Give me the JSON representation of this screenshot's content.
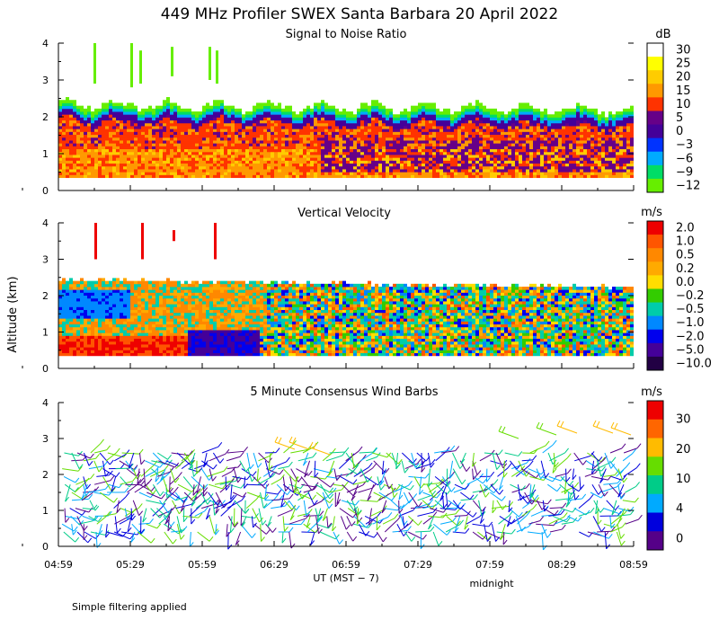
{
  "title": "449 MHz Profiler SWEX Santa Barbara 20 April 2022",
  "ylabel": "Altitude (km)",
  "xlabel": "UT  (MST − 7)",
  "x_ticks": [
    "04:59",
    "05:29",
    "05:59",
    "06:29",
    "06:59",
    "07:29",
    "07:59",
    "08:29",
    "08:59"
  ],
  "midnight_label": "midnight",
  "footnote": "Simple filtering applied",
  "chart_data": [
    {
      "type": "heatmap",
      "title": "Signal to Noise Ratio",
      "ylim": [
        0,
        4
      ],
      "y_ticks": [
        "0",
        "1",
        "2",
        "3",
        "4"
      ],
      "colorbar": {
        "unit": "dB",
        "labels": [
          "30",
          "25",
          "20",
          "15",
          "10",
          "5",
          "0",
          "−3",
          "−6",
          "−9",
          "−12"
        ],
        "colors": [
          "#ffffff",
          "#ffff00",
          "#ffcc00",
          "#ff9900",
          "#ff3300",
          "#660088",
          "#440099",
          "#0033ff",
          "#00aaff",
          "#00dd66",
          "#66ee00"
        ]
      }
    },
    {
      "type": "heatmap",
      "title": "Vertical Velocity",
      "ylim": [
        0,
        4
      ],
      "y_ticks": [
        "0",
        "1",
        "2",
        "3",
        "4"
      ],
      "colorbar": {
        "unit": "m/s",
        "labels": [
          "2.0",
          "1.0",
          "0.5",
          "0.2",
          "0.0",
          "−0.2",
          "−0.5",
          "−1.0",
          "−2.0",
          "−5.0",
          "−10.0"
        ],
        "colors": [
          "#ee0000",
          "#ff5500",
          "#ff8800",
          "#ffaa00",
          "#ffdd00",
          "#33cc00",
          "#00ccaa",
          "#0088ff",
          "#0000ee",
          "#440099",
          "#220044"
        ]
      }
    },
    {
      "type": "scatter",
      "title": "5 Minute Consensus Wind Barbs",
      "ylim": [
        0,
        4
      ],
      "y_ticks": [
        "0",
        "1",
        "2",
        "3",
        "4"
      ],
      "colorbar": {
        "unit": "m/s",
        "labels": [
          "30",
          "20",
          "10",
          "4",
          "0"
        ],
        "colors": [
          "#ee0000",
          "#ff6600",
          "#ffbb00",
          "#66dd00",
          "#00cc88",
          "#00aaff",
          "#0000dd",
          "#550088"
        ]
      }
    }
  ]
}
